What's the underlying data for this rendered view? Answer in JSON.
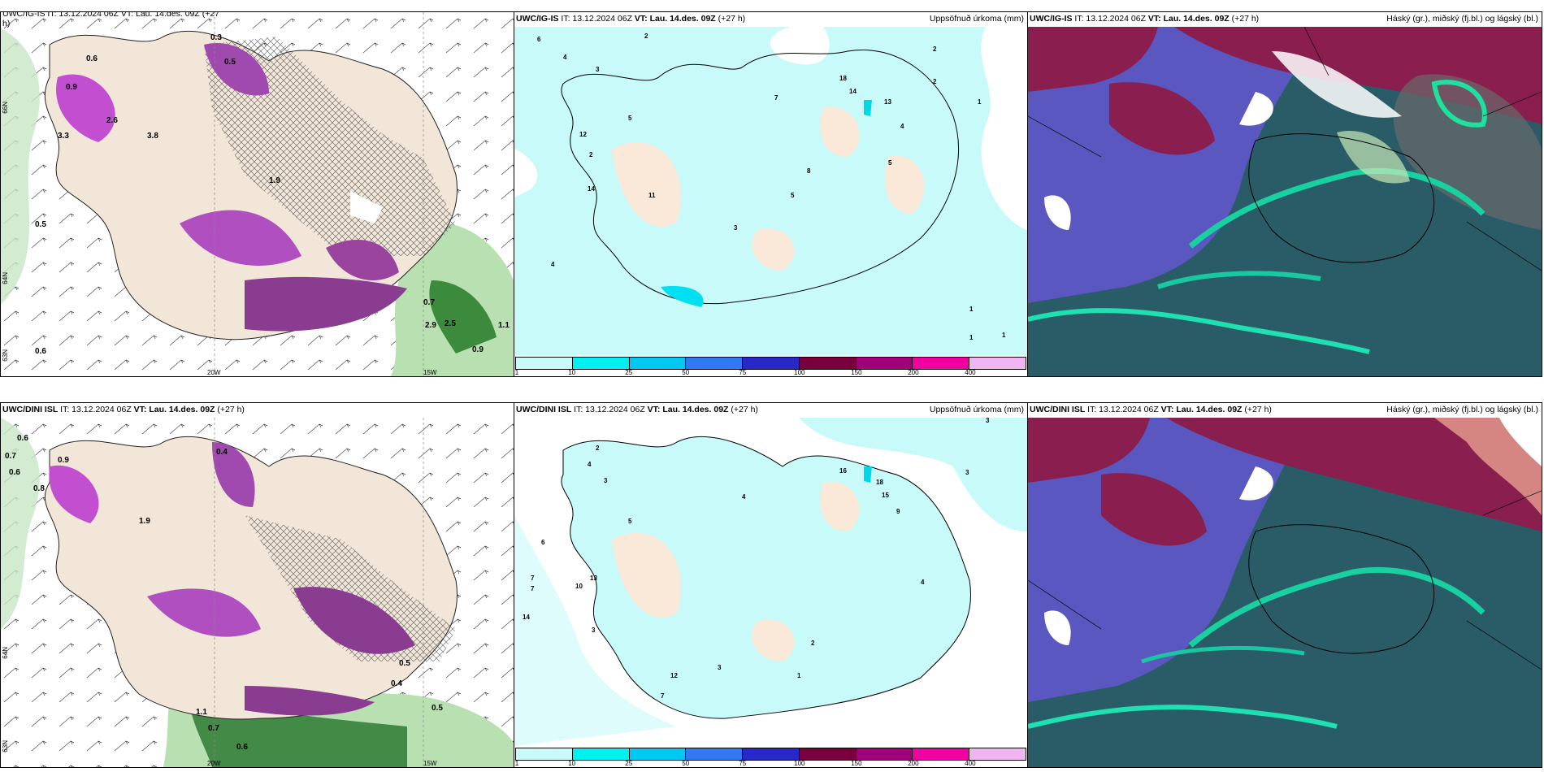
{
  "panels": {
    "r1c1": {
      "model": "UWC/IG-IS",
      "rest": " IT: 13.12.2024 06Z ",
      "vt": "VT: Lau. 14.des. 09Z",
      "lead": " (+27 h)",
      "fragment_top": "UWC/IG-IS IT: 13.12.2024 06Z VT: Lau. 14.des. 09Z (+27",
      "fragment_bottom": "h)"
    },
    "r1c2": {
      "model": "UWC/IG-IS",
      "rest": " IT: 13.12.2024 06Z ",
      "vt": "VT: Lau. 14.des. 09Z",
      "lead": " (+27 h)",
      "title_right": "Uppsöfnuð úrkoma (mm)"
    },
    "r1c3": {
      "model": "UWC/IG-IS",
      "rest": " IT: 13.12.2024 06Z ",
      "vt": "VT: Lau. 14.des. 09Z",
      "lead": " (+27 h)",
      "title_right": "Háský (gr.), miðský (fj.bl.) og lágský (bl.)"
    },
    "r2c1": {
      "model": "UWC/DINI ISL",
      "rest": " IT: 13.12.2024 06Z ",
      "vt": "VT: Lau. 14.des. 09Z",
      "lead": " (+27 h)"
    },
    "r2c2": {
      "model": "UWC/DINI ISL",
      "rest": " IT: 13.12.2024 06Z ",
      "vt": "VT: Lau. 14.des. 09Z",
      "lead": " (+27 h)",
      "title_right": "Uppsöfnuð úrkoma (mm)"
    },
    "r2c3": {
      "model": "UWC/DINI ISL",
      "rest": " IT: 13.12.2024 06Z ",
      "vt": "VT: Lau. 14.des. 09Z",
      "lead": " (+27 h)",
      "title_right": "Háský (gr.), miðský (fj.bl.) og lágský (bl.)"
    }
  },
  "colorbar": {
    "ticks": [
      "1",
      "10",
      "25",
      "50",
      "75",
      "100",
      "150",
      "200",
      "400"
    ],
    "colors": [
      "#c8fafa",
      "#00f0f0",
      "#00c8f0",
      "#3278f0",
      "#2828c8",
      "#78003c",
      "#a00078",
      "#f000a0",
      "#f0b4f0"
    ]
  },
  "axis_labels": {
    "lon_20w": "20W",
    "lon_15w": "15W",
    "lat_66n": "66N",
    "lat_64n": "64N",
    "lat_63n": "63N"
  },
  "precip_labels_r1": [
    "6",
    "2",
    "4",
    "3",
    "12",
    "5",
    "2",
    "14",
    "11",
    "4",
    "7",
    "14",
    "18",
    "13",
    "2",
    "2",
    "1",
    "4",
    "3",
    "5",
    "5",
    "8",
    "1",
    "1",
    "1"
  ],
  "precip_labels_r2": [
    "2",
    "4",
    "3",
    "6",
    "5",
    "7",
    "7",
    "14",
    "3",
    "10",
    "13",
    "4",
    "16",
    "18",
    "15",
    "9",
    "3",
    "4",
    "2",
    "12",
    "7",
    "3",
    "1",
    "3"
  ],
  "wind_labels_r1": [
    "0.3",
    "0.5",
    "0.6",
    "0.9",
    "2.6",
    "3.3",
    "3.8",
    "1.9",
    "0.5",
    "2.9",
    "2.5",
    "0.6",
    "0.7",
    "1.1",
    "0.9"
  ],
  "wind_labels_r2": [
    "0.6",
    "0.7",
    "0.6",
    "0.9",
    "0.8",
    "0.4",
    "1.9",
    "1.1",
    "0.7",
    "0.6",
    "0.5",
    "0.4",
    "0.5"
  ]
}
